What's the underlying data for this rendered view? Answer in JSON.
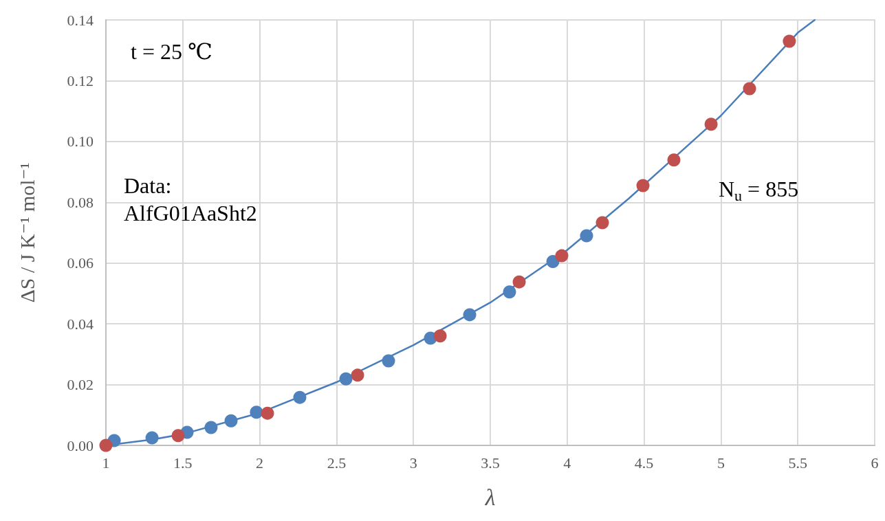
{
  "chart_data": {
    "type": "scatter",
    "xlabel": "λ",
    "ylabel": "ΔS / J K⁻¹ mol⁻¹",
    "annotations": [
      "t = 25 ℃",
      "Data:\nAlfG01AaSht2",
      "N$_{u}$ = 855"
    ],
    "series": [
      {
        "type": "line",
        "color": "#4a7ebb",
        "marker": "none",
        "line_style": "solid",
        "x": [
          1,
          1.3,
          1.5,
          2,
          2.5,
          3,
          3.5,
          4,
          4.4,
          5,
          5.5,
          5.61
        ],
        "values": [
          0,
          0.0019,
          0.0037,
          0.0107,
          0.0208,
          0.033,
          0.047,
          0.0643,
          0.0812,
          0.1085,
          0.1358,
          0.14
        ]
      },
      {
        "color": "#4f81bd",
        "x": [
          1.054,
          1.3,
          1.528,
          1.684,
          1.814,
          1.979,
          2.261,
          2.561,
          2.838,
          3.111,
          3.366,
          3.625,
          3.907,
          4.126
        ],
        "values": [
          0.0016,
          0.0025,
          0.0043,
          0.0059,
          0.0081,
          0.0109,
          0.0158,
          0.0219,
          0.0278,
          0.0353,
          0.043,
          0.0505,
          0.0605,
          0.069
        ]
      },
      {
        "color": "#c0504d",
        "x": [
          1.0,
          1.47,
          2.051,
          2.637,
          3.174,
          3.688,
          3.965,
          4.229,
          4.493,
          4.694,
          4.936,
          5.186,
          5.445
        ],
        "values": [
          0,
          0.0032,
          0.0106,
          0.0231,
          0.036,
          0.0538,
          0.0624,
          0.0733,
          0.0855,
          0.0939,
          0.1057,
          0.1174,
          0.133
        ]
      }
    ],
    "marker": "circle",
    "grid": true,
    "xlim": [
      1,
      6
    ],
    "xticks": [
      1,
      1.5,
      2,
      2.5,
      3,
      3.5,
      4,
      4.5,
      5,
      5.5,
      6
    ],
    "ylim": [
      0,
      0.14
    ],
    "yticks": [
      {
        "value": 0,
        "label": "0.00"
      },
      {
        "value": 0.02,
        "label": "0.02"
      },
      {
        "value": 0.04,
        "label": "0.04"
      },
      {
        "value": 0.06,
        "label": "0.06"
      },
      {
        "value": 0.08,
        "label": "0.08"
      },
      {
        "value": 0.1,
        "label": "0.10"
      },
      {
        "value": 0.12,
        "label": "0.12"
      },
      {
        "value": 0.14,
        "label": "0.14"
      }
    ]
  }
}
